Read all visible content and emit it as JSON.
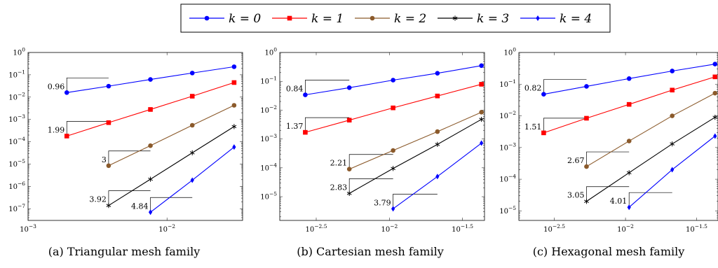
{
  "legend": [
    {
      "label": "k = 0",
      "color": "#0000ff",
      "marker": "circle"
    },
    {
      "label": "k = 1",
      "color": "#ff0000",
      "marker": "square"
    },
    {
      "label": "k = 2",
      "color": "#8b5a2b",
      "marker": "circle"
    },
    {
      "label": "k = 3",
      "color": "#000000",
      "marker": "star"
    },
    {
      "label": "k = 4",
      "color": "#0000ff",
      "marker": "diamond"
    }
  ],
  "chart_data": [
    {
      "type": "line",
      "caption": "(a) Triangular mesh family",
      "xscale": "log",
      "yscale": "log",
      "xlim": [
        0.001,
        0.035
      ],
      "ylim": [
        3e-08,
        1
      ],
      "xticks": [
        0.001,
        0.01
      ],
      "xticklabels": [
        "10^-3",
        "10^-2"
      ],
      "yticks": [
        1e-07,
        1e-06,
        1e-05,
        0.0001,
        0.001,
        0.01,
        0.1,
        1
      ],
      "yticklabels": [
        "10^-7",
        "10^-6",
        "10^-5",
        "10^-4",
        "10^-3",
        "10^-2",
        "10^-1",
        "10^0"
      ],
      "series": [
        {
          "name": "k = 0",
          "x": [
            0.0019,
            0.0038,
            0.0076,
            0.0152,
            0.0304
          ],
          "y": [
            0.016,
            0.031,
            0.062,
            0.12,
            0.23
          ]
        },
        {
          "name": "k = 1",
          "x": [
            0.0019,
            0.0038,
            0.0076,
            0.0152,
            0.0304
          ],
          "y": [
            0.00018,
            0.00072,
            0.0028,
            0.011,
            0.045
          ]
        },
        {
          "name": "k = 2",
          "x": [
            0.0038,
            0.0076,
            0.0152,
            0.0304
          ],
          "y": [
            8.5e-06,
            6.7e-05,
            0.00055,
            0.0043
          ]
        },
        {
          "name": "k = 3",
          "x": [
            0.0038,
            0.0076,
            0.0152,
            0.0304
          ],
          "y": [
            1.4e-07,
            2.1e-06,
            3.2e-05,
            0.00048
          ]
        },
        {
          "name": "k = 4",
          "x": [
            0.0076,
            0.0152,
            0.0304
          ],
          "y": [
            7e-08,
            1.9e-06,
            5.8e-05
          ]
        }
      ],
      "slopes": [
        {
          "label": "0.96",
          "x": [
            0.0019,
            0.0038
          ],
          "y": 0.016
        },
        {
          "label": "1.99",
          "x": [
            0.0019,
            0.0038
          ],
          "y": 0.00018
        },
        {
          "label": "3",
          "x": [
            0.0038,
            0.0076
          ],
          "y": 8.5e-06
        },
        {
          "label": "3.92",
          "x": [
            0.0038,
            0.0076
          ],
          "y": 1.4e-07
        },
        {
          "label": "4.84",
          "x": [
            0.0076,
            0.0152
          ],
          "y": 7e-08
        }
      ]
    },
    {
      "type": "line",
      "caption": "(b) Cartesian mesh family",
      "xscale": "log",
      "yscale": "log",
      "xlim": [
        0.00178,
        0.0447
      ],
      "ylim": [
        1.5e-06,
        1
      ],
      "xticks": [
        0.00316,
        0.01,
        0.0316
      ],
      "xticklabels": [
        "10^-2.5",
        "10^-2",
        "10^-1.5"
      ],
      "yticks": [
        1e-05,
        0.0001,
        0.001,
        0.01,
        0.1,
        1
      ],
      "yticklabels": [
        "10^-5",
        "10^-4",
        "10^-3",
        "10^-2",
        "10^-1",
        "10^0"
      ],
      "series": [
        {
          "name": "k = 0",
          "x": [
            0.00266,
            0.00532,
            0.0106,
            0.0213,
            0.0426
          ],
          "y": [
            0.034,
            0.06,
            0.11,
            0.19,
            0.35
          ]
        },
        {
          "name": "k = 1",
          "x": [
            0.00266,
            0.00532,
            0.0106,
            0.0213,
            0.0426
          ],
          "y": [
            0.0017,
            0.0045,
            0.012,
            0.031,
            0.079
          ]
        },
        {
          "name": "k = 2",
          "x": [
            0.00532,
            0.0106,
            0.0213,
            0.0426
          ],
          "y": [
            9e-05,
            0.0004,
            0.0018,
            0.0085
          ]
        },
        {
          "name": "k = 3",
          "x": [
            0.00532,
            0.0106,
            0.0213,
            0.0426
          ],
          "y": [
            1.3e-05,
            9.5e-05,
            0.00065,
            0.0048
          ]
        },
        {
          "name": "k = 4",
          "x": [
            0.0106,
            0.0213,
            0.0426
          ],
          "y": [
            3.8e-06,
            5e-05,
            0.00072
          ]
        }
      ],
      "slopes": [
        {
          "label": "0.84",
          "x": [
            0.00266,
            0.00532
          ],
          "y": 0.034
        },
        {
          "label": "1.37",
          "x": [
            0.00266,
            0.00532
          ],
          "y": 0.0017
        },
        {
          "label": "2.21",
          "x": [
            0.00532,
            0.0106
          ],
          "y": 9e-05
        },
        {
          "label": "2.83",
          "x": [
            0.00532,
            0.0106
          ],
          "y": 1.3e-05
        },
        {
          "label": "3.79",
          "x": [
            0.0106,
            0.0213
          ],
          "y": 3.8e-06
        }
      ]
    },
    {
      "type": "line",
      "caption": "(c) Hexagonal mesh family",
      "xscale": "log",
      "yscale": "log",
      "xlim": [
        0.00178,
        0.0447
      ],
      "ylim": [
        5e-06,
        1
      ],
      "xticks": [
        0.00316,
        0.01,
        0.0316
      ],
      "xticklabels": [
        "10^-2.5",
        "10^-2",
        "10^-1.5"
      ],
      "yticks": [
        1e-05,
        0.0001,
        0.001,
        0.01,
        0.1,
        1
      ],
      "yticklabels": [
        "10^-5",
        "10^-4",
        "10^-3",
        "10^-2",
        "10^-1",
        "10^0"
      ],
      "series": [
        {
          "name": "k = 0",
          "x": [
            0.00266,
            0.00532,
            0.0106,
            0.0213,
            0.0426
          ],
          "y": [
            0.048,
            0.085,
            0.15,
            0.26,
            0.43
          ]
        },
        {
          "name": "k = 1",
          "x": [
            0.00266,
            0.00532,
            0.0106,
            0.0213,
            0.0426
          ],
          "y": [
            0.0029,
            0.0084,
            0.023,
            0.065,
            0.17
          ]
        },
        {
          "name": "k = 2",
          "x": [
            0.00532,
            0.0106,
            0.0213,
            0.0426
          ],
          "y": [
            0.00025,
            0.0016,
            0.01,
            0.052
          ]
        },
        {
          "name": "k = 3",
          "x": [
            0.00532,
            0.0106,
            0.0213,
            0.0426
          ],
          "y": [
            2e-05,
            0.00016,
            0.0013,
            0.009
          ]
        },
        {
          "name": "k = 4",
          "x": [
            0.0106,
            0.0213,
            0.0426
          ],
          "y": [
            1.3e-05,
            0.0002,
            0.0023
          ]
        }
      ],
      "slopes": [
        {
          "label": "0.82",
          "x": [
            0.00266,
            0.00532
          ],
          "y": 0.048
        },
        {
          "label": "1.51",
          "x": [
            0.00266,
            0.00532
          ],
          "y": 0.0029
        },
        {
          "label": "2.67",
          "x": [
            0.00532,
            0.0106
          ],
          "y": 0.00025
        },
        {
          "label": "3.05",
          "x": [
            0.00532,
            0.0106
          ],
          "y": 2e-05
        },
        {
          "label": "4.01",
          "x": [
            0.0106,
            0.0213
          ],
          "y": 1.3e-05
        }
      ]
    }
  ]
}
